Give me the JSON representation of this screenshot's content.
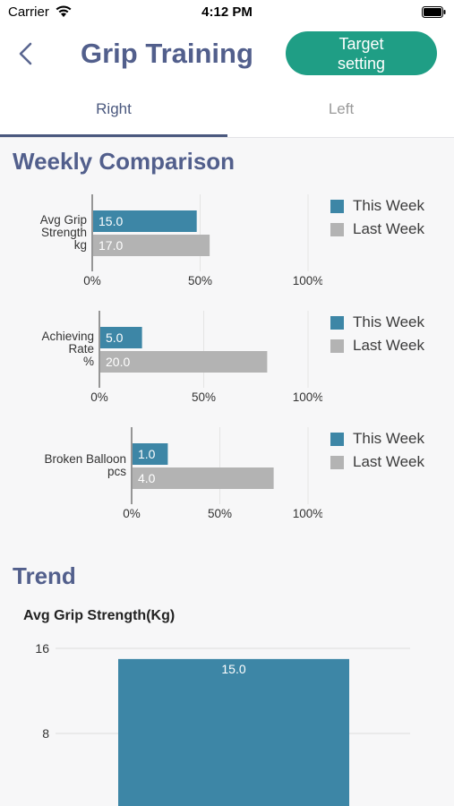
{
  "status_bar": {
    "carrier": "Carrier",
    "time": "4:12 PM"
  },
  "header": {
    "title": "Grip Training",
    "target_button": "Target\nsetting"
  },
  "tabs": [
    {
      "label": "Right",
      "active": true
    },
    {
      "label": "Left",
      "active": false
    }
  ],
  "weekly": {
    "title": "Weekly Comparison",
    "legend": [
      "This Week",
      "Last Week"
    ],
    "colors": {
      "this_week": "#3d86a6",
      "last_week": "#b3b3b3"
    }
  },
  "trend": {
    "title": "Trend",
    "chart_title": "Avg Grip Strength(Kg)"
  },
  "chart_data": [
    {
      "type": "bar",
      "orientation": "horizontal",
      "category_label": [
        "Avg Grip",
        "Strength",
        "kg"
      ],
      "series": [
        {
          "name": "This Week",
          "value": 15.0,
          "label": "15.0",
          "percent": 48
        },
        {
          "name": "Last Week",
          "value": 17.0,
          "label": "17.0",
          "percent": 54
        }
      ],
      "x_ticks": [
        "0%",
        "50%",
        "100%"
      ],
      "xlim": [
        0,
        100
      ]
    },
    {
      "type": "bar",
      "orientation": "horizontal",
      "category_label": [
        "Achieving",
        "Rate",
        "%"
      ],
      "series": [
        {
          "name": "This Week",
          "value": 5.0,
          "label": "5.0",
          "percent": 20
        },
        {
          "name": "Last Week",
          "value": 20.0,
          "label": "20.0",
          "percent": 80
        }
      ],
      "x_ticks": [
        "0%",
        "50%",
        "100%"
      ],
      "xlim": [
        0,
        100
      ]
    },
    {
      "type": "bar",
      "orientation": "horizontal",
      "category_label": [
        "Broken Balloon",
        "pcs"
      ],
      "series": [
        {
          "name": "This Week",
          "value": 1.0,
          "label": "1.0",
          "percent": 20
        },
        {
          "name": "Last Week",
          "value": 4.0,
          "label": "4.0",
          "percent": 80
        }
      ],
      "x_ticks": [
        "0%",
        "50%",
        "100%"
      ],
      "xlim": [
        0,
        100
      ]
    },
    {
      "type": "bar",
      "orientation": "vertical",
      "title": "Avg Grip Strength(Kg)",
      "values": [
        15.0
      ],
      "value_labels": [
        "15.0"
      ],
      "y_ticks": [
        "16",
        "8"
      ],
      "ylim": [
        0,
        16
      ],
      "color": "#3d86a6"
    }
  ]
}
